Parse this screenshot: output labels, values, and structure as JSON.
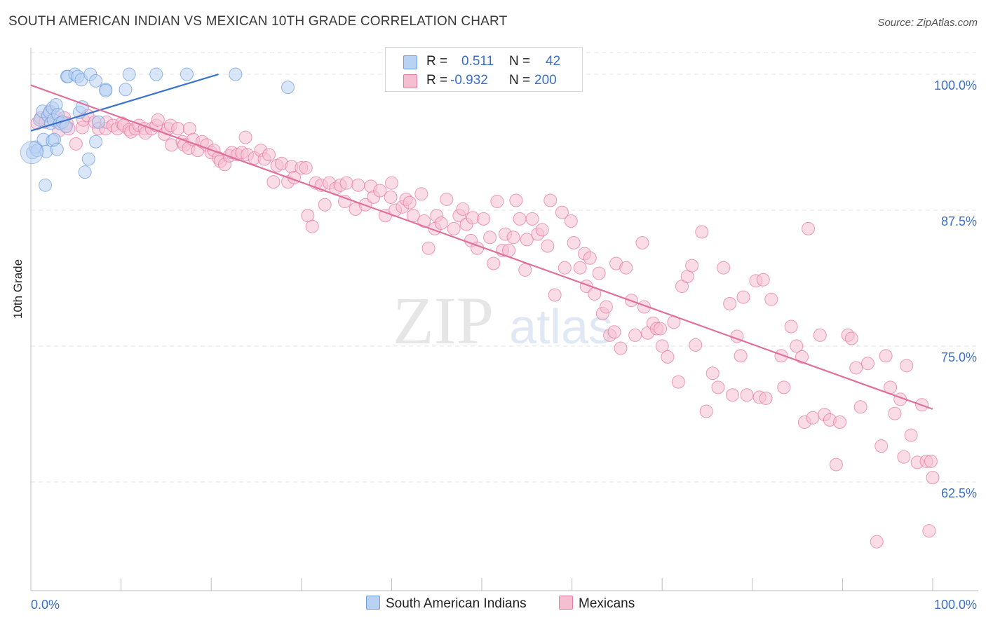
{
  "title": "SOUTH AMERICAN INDIAN VS MEXICAN 10TH GRADE CORRELATION CHART",
  "source": "Source: ZipAtlas.com",
  "watermark": {
    "zip": "ZIP",
    "atlas": "atlas"
  },
  "legend": {
    "r_label": "R =",
    "n_label": "N =",
    "series": [
      {
        "name": "South American Indians",
        "r": "0.511",
        "n": "42",
        "color": "#6f9fe0",
        "fill": "#b9d2f3"
      },
      {
        "name": "Mexicans",
        "r": "-0.932",
        "n": "200",
        "color": "#e77aa0",
        "fill": "#f6bfd1"
      }
    ]
  },
  "chart_data": {
    "type": "scatter",
    "ylabel": "10th Grade",
    "xlim": [
      0,
      100
    ],
    "ylim": [
      52.5,
      102
    ],
    "x_tick_labels": [
      "0.0%",
      "100.0%"
    ],
    "y_ticks": [
      100.0,
      87.5,
      75.0,
      62.5
    ],
    "y_tick_labels": [
      "100.0%",
      "87.5%",
      "75.0%",
      "62.5%"
    ],
    "series": [
      {
        "name": "South American Indians",
        "color": "#6f9fe0",
        "fill": "#b9d2f3",
        "trend": {
          "x0": 0.0,
          "y0": 94.8,
          "x1": 20.8,
          "y1": 100.0
        },
        "points": [
          [
            0.2,
            92.8
          ],
          [
            0.5,
            93.3
          ],
          [
            0.7,
            93.0
          ],
          [
            1.0,
            95.8
          ],
          [
            1.3,
            96.6
          ],
          [
            1.4,
            94.0
          ],
          [
            1.6,
            89.8
          ],
          [
            1.7,
            92.9
          ],
          [
            1.9,
            96.2
          ],
          [
            2.1,
            96.5
          ],
          [
            2.2,
            95.5
          ],
          [
            2.4,
            96.9
          ],
          [
            2.4,
            93.9
          ],
          [
            2.5,
            95.8
          ],
          [
            2.6,
            94.0
          ],
          [
            2.8,
            97.2
          ],
          [
            2.9,
            93.1
          ],
          [
            3.0,
            96.3
          ],
          [
            3.2,
            95.5
          ],
          [
            3.5,
            95.6
          ],
          [
            3.9,
            95.2
          ],
          [
            4.0,
            99.8
          ],
          [
            4.1,
            99.8
          ],
          [
            4.9,
            100.0
          ],
          [
            5.2,
            99.8
          ],
          [
            5.6,
            99.5
          ],
          [
            5.4,
            96.5
          ],
          [
            5.7,
            97.0
          ],
          [
            6.0,
            91.0
          ],
          [
            6.4,
            92.2
          ],
          [
            6.6,
            100.0
          ],
          [
            7.2,
            99.4
          ],
          [
            7.2,
            93.8
          ],
          [
            7.5,
            95.6
          ],
          [
            8.3,
            98.6
          ],
          [
            8.3,
            98.5
          ],
          [
            10.5,
            98.6
          ],
          [
            10.9,
            100.0
          ],
          [
            13.9,
            100.0
          ],
          [
            17.3,
            100.0
          ],
          [
            22.7,
            100.0
          ],
          [
            28.5,
            98.8
          ]
        ]
      },
      {
        "name": "Mexicans",
        "color": "#e77aa0",
        "fill": "#f6bfd1",
        "trend": {
          "x0": 0.0,
          "y0": 99.0,
          "x1": 100.0,
          "y1": 69.2
        },
        "points": [
          [
            0.7,
            95.5
          ],
          [
            1.1,
            96.0
          ],
          [
            1.6,
            95.6
          ],
          [
            2.1,
            96.6
          ],
          [
            2.9,
            96.0
          ],
          [
            3.1,
            94.8
          ],
          [
            3.7,
            96.0
          ],
          [
            4.0,
            95.5
          ],
          [
            4.2,
            95.0
          ],
          [
            5.0,
            93.6
          ],
          [
            5.7,
            95.1
          ],
          [
            5.8,
            95.8
          ],
          [
            6.3,
            96.2
          ],
          [
            7.1,
            95.6
          ],
          [
            7.5,
            95.0
          ],
          [
            8.3,
            95.0
          ],
          [
            8.4,
            95.6
          ],
          [
            9.1,
            95.3
          ],
          [
            9.6,
            95.0
          ],
          [
            10.1,
            95.5
          ],
          [
            10.3,
            95.3
          ],
          [
            10.9,
            94.9
          ],
          [
            11.1,
            94.7
          ],
          [
            11.6,
            95.0
          ],
          [
            12.0,
            95.3
          ],
          [
            12.6,
            95.0
          ],
          [
            12.7,
            94.6
          ],
          [
            13.4,
            95.0
          ],
          [
            13.9,
            95.3
          ],
          [
            14.1,
            95.8
          ],
          [
            14.8,
            94.5
          ],
          [
            15.2,
            95.0
          ],
          [
            15.5,
            95.3
          ],
          [
            15.6,
            93.5
          ],
          [
            16.3,
            95.0
          ],
          [
            16.8,
            93.8
          ],
          [
            17.0,
            93.5
          ],
          [
            17.5,
            93.2
          ],
          [
            17.6,
            95.0
          ],
          [
            18.0,
            94.0
          ],
          [
            18.5,
            93.0
          ],
          [
            19.0,
            93.8
          ],
          [
            19.5,
            93.5
          ],
          [
            20.0,
            92.8
          ],
          [
            20.3,
            93.0
          ],
          [
            20.8,
            92.3
          ],
          [
            21.0,
            92.0
          ],
          [
            21.5,
            91.7
          ],
          [
            22.0,
            92.5
          ],
          [
            22.3,
            92.8
          ],
          [
            22.9,
            92.6
          ],
          [
            23.4,
            92.8
          ],
          [
            23.8,
            94.2
          ],
          [
            24.0,
            92.6
          ],
          [
            24.8,
            92.3
          ],
          [
            25.5,
            93.0
          ],
          [
            25.9,
            92.2
          ],
          [
            26.4,
            92.6
          ],
          [
            26.9,
            90.1
          ],
          [
            27.3,
            91.6
          ],
          [
            27.8,
            91.8
          ],
          [
            28.5,
            90.1
          ],
          [
            28.9,
            91.5
          ],
          [
            29.2,
            90.5
          ],
          [
            30.0,
            91.4
          ],
          [
            30.5,
            91.4
          ],
          [
            30.7,
            87.0
          ],
          [
            31.2,
            86.0
          ],
          [
            31.6,
            90.0
          ],
          [
            32.2,
            89.8
          ],
          [
            32.6,
            88.0
          ],
          [
            33.1,
            90.0
          ],
          [
            33.8,
            89.5
          ],
          [
            34.3,
            89.8
          ],
          [
            34.8,
            88.3
          ],
          [
            35.0,
            90.0
          ],
          [
            36.0,
            87.6
          ],
          [
            36.3,
            89.8
          ],
          [
            37.1,
            88.0
          ],
          [
            37.7,
            89.7
          ],
          [
            38.0,
            88.7
          ],
          [
            38.7,
            89.3
          ],
          [
            39.3,
            87.0
          ],
          [
            39.9,
            88.7
          ],
          [
            40.0,
            90.0
          ],
          [
            40.4,
            87.5
          ],
          [
            41.2,
            87.8
          ],
          [
            41.6,
            88.5
          ],
          [
            42.0,
            88.2
          ],
          [
            42.4,
            87.0
          ],
          [
            43.3,
            89.0
          ],
          [
            43.6,
            86.5
          ],
          [
            44.1,
            84.0
          ],
          [
            44.8,
            85.8
          ],
          [
            45.0,
            87.0
          ],
          [
            45.5,
            86.3
          ],
          [
            46.1,
            88.5
          ],
          [
            46.9,
            85.8
          ],
          [
            47.5,
            87.0
          ],
          [
            47.9,
            87.6
          ],
          [
            48.3,
            86.2
          ],
          [
            48.8,
            84.7
          ],
          [
            49.0,
            86.8
          ],
          [
            49.5,
            84.0
          ],
          [
            50.2,
            86.7
          ],
          [
            50.9,
            85.0
          ],
          [
            51.3,
            82.6
          ],
          [
            51.7,
            88.3
          ],
          [
            52.3,
            83.8
          ],
          [
            52.6,
            85.3
          ],
          [
            53.0,
            83.8
          ],
          [
            53.5,
            85.0
          ],
          [
            53.8,
            88.4
          ],
          [
            54.2,
            86.7
          ],
          [
            54.8,
            82.0
          ],
          [
            55.0,
            84.8
          ],
          [
            55.6,
            86.7
          ],
          [
            56.2,
            85.3
          ],
          [
            56.7,
            85.7
          ],
          [
            57.3,
            84.2
          ],
          [
            57.6,
            88.4
          ],
          [
            58.1,
            79.7
          ],
          [
            58.9,
            87.3
          ],
          [
            59.2,
            82.2
          ],
          [
            59.9,
            86.5
          ],
          [
            60.2,
            84.5
          ],
          [
            60.9,
            82.2
          ],
          [
            61.4,
            83.5
          ],
          [
            61.6,
            80.5
          ],
          [
            62.0,
            83.1
          ],
          [
            62.5,
            79.8
          ],
          [
            63.0,
            81.7
          ],
          [
            63.4,
            78.0
          ],
          [
            63.8,
            78.6
          ],
          [
            64.2,
            76.0
          ],
          [
            64.7,
            76.3
          ],
          [
            64.9,
            82.6
          ],
          [
            65.4,
            74.8
          ],
          [
            66.0,
            82.2
          ],
          [
            66.6,
            79.2
          ],
          [
            67.0,
            76.0
          ],
          [
            67.8,
            84.5
          ],
          [
            68.0,
            78.6
          ],
          [
            68.4,
            76.2
          ],
          [
            69.0,
            77.1
          ],
          [
            69.4,
            76.6
          ],
          [
            69.8,
            76.6
          ],
          [
            70.0,
            75.0
          ],
          [
            70.6,
            74.0
          ],
          [
            71.3,
            77.2
          ],
          [
            71.8,
            71.7
          ],
          [
            72.2,
            80.5
          ],
          [
            72.8,
            81.4
          ],
          [
            73.3,
            82.4
          ],
          [
            73.7,
            75.1
          ],
          [
            74.4,
            85.5
          ],
          [
            74.9,
            69.0
          ],
          [
            75.6,
            72.5
          ],
          [
            76.2,
            71.2
          ],
          [
            76.8,
            82.2
          ],
          [
            77.5,
            78.9
          ],
          [
            77.8,
            70.5
          ],
          [
            78.3,
            75.9
          ],
          [
            78.7,
            74.1
          ],
          [
            79.4,
            70.5
          ],
          [
            80.4,
            81.0
          ],
          [
            80.8,
            70.3
          ],
          [
            81.2,
            81.1
          ],
          [
            81.5,
            70.2
          ],
          [
            82.1,
            79.3
          ],
          [
            83.2,
            74.1
          ],
          [
            83.5,
            71.2
          ],
          [
            84.3,
            76.8
          ],
          [
            84.9,
            75.0
          ],
          [
            85.8,
            68.0
          ],
          [
            86.2,
            85.8
          ],
          [
            86.7,
            68.4
          ],
          [
            87.5,
            76.0
          ],
          [
            88.0,
            68.7
          ],
          [
            88.6,
            68.2
          ],
          [
            89.3,
            64.1
          ],
          [
            89.7,
            68.0
          ],
          [
            90.6,
            76.0
          ],
          [
            91.0,
            75.7
          ],
          [
            91.5,
            73.0
          ],
          [
            92.0,
            69.4
          ],
          [
            92.8,
            73.4
          ],
          [
            93.8,
            57.0
          ],
          [
            94.3,
            65.8
          ],
          [
            94.8,
            74.1
          ],
          [
            95.3,
            71.2
          ],
          [
            95.8,
            68.8
          ],
          [
            96.4,
            70.1
          ],
          [
            96.8,
            64.8
          ],
          [
            97.1,
            73.2
          ],
          [
            97.6,
            66.8
          ],
          [
            98.3,
            64.3
          ],
          [
            98.8,
            69.6
          ],
          [
            99.3,
            64.4
          ],
          [
            99.8,
            64.4
          ],
          [
            100.0,
            62.9
          ],
          [
            99.6,
            58.0
          ],
          [
            79.0,
            79.5
          ],
          [
            85.5,
            74.0
          ]
        ]
      }
    ]
  }
}
